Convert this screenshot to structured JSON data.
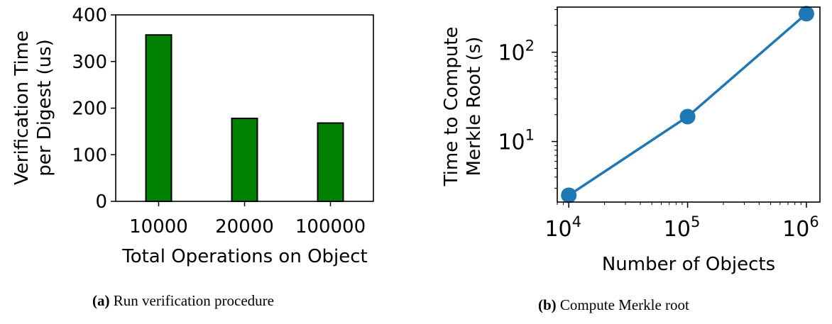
{
  "chart_data": [
    {
      "type": "bar",
      "categories": [
        "10000",
        "20000",
        "100000"
      ],
      "values": [
        357,
        178,
        168
      ],
      "xlabel": "Total Operations on Object",
      "ylabel_lines": [
        "Verification Time",
        "per Digest (us)"
      ],
      "ylim": [
        0,
        400
      ],
      "yticks": [
        "0",
        "100",
        "200",
        "300",
        "400"
      ],
      "bar_color": "#008000",
      "grid": false
    },
    {
      "type": "line",
      "x": [
        10000,
        100000,
        1000000
      ],
      "y": [
        2.5,
        19,
        270
      ],
      "xscale": "log",
      "yscale": "log",
      "xlim": [
        8000,
        1300000
      ],
      "ylim": [
        2.1,
        320
      ],
      "xticks": [
        {
          "base": "10",
          "exp": "4"
        },
        {
          "base": "10",
          "exp": "5"
        },
        {
          "base": "10",
          "exp": "6"
        }
      ],
      "yticks": [
        {
          "base": "10",
          "exp": "1"
        },
        {
          "base": "10",
          "exp": "2"
        }
      ],
      "xlabel": "Number of Objects",
      "ylabel_lines": [
        "Time to Compute",
        "Merkle Root (s)"
      ],
      "line_color": "#1f77b4",
      "grid": false
    }
  ],
  "captions": [
    {
      "label": "(a)",
      "text": " Run verification procedure"
    },
    {
      "label": "(b)",
      "text": " Compute Merkle root"
    }
  ]
}
